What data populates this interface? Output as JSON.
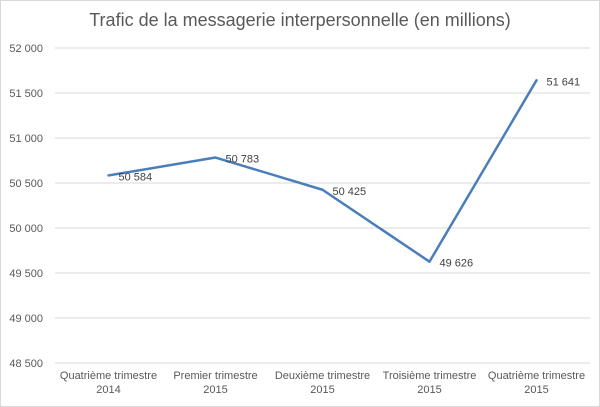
{
  "chart_data": {
    "type": "line",
    "title": "Trafic de la messagerie interpersonnelle (en millions)",
    "xlabel": "",
    "ylabel": "",
    "categories": [
      [
        "Quatrième trimestre",
        "2014"
      ],
      [
        "Premier trimestre",
        "2015"
      ],
      [
        "Deuxième trimestre",
        "2015"
      ],
      [
        "Troisième trimestre",
        "2015"
      ],
      [
        "Quatrième trimestre",
        "2015"
      ]
    ],
    "series": [
      {
        "values": [
          50584,
          50783,
          50425,
          49626,
          51641
        ],
        "labels": [
          "50 584",
          "50 783",
          "50 425",
          "49 626",
          "51 641"
        ],
        "color": "#4a7ebb"
      }
    ],
    "ylim": [
      48500,
      52000
    ],
    "yticks": [
      48500,
      49000,
      49500,
      50000,
      50500,
      51000,
      51500,
      52000
    ],
    "ytick_labels": [
      "48 500",
      "49 000",
      "49 500",
      "50 000",
      "50 500",
      "51 000",
      "51 500",
      "52 000"
    ],
    "grid": true,
    "gridline_color": "#d9d9d9",
    "legend": "none"
  }
}
